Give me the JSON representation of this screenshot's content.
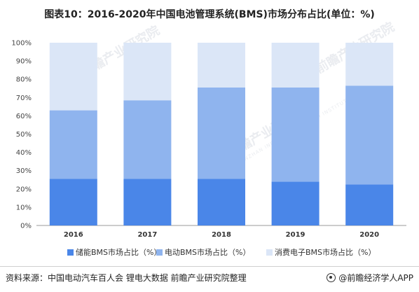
{
  "title": "图表10：2016-2020年中国电池管理系统(BMS)市场分布占比(单位：%)",
  "watermark": {
    "text": "前瞻产业研究院",
    "sub": "QIANZHAN INDUSTRY RESEARCH INSTITUTE"
  },
  "source": "资料来源：中国电动汽车百人会 锂电大数据 前瞻产业研究院整理",
  "brand": "@前瞻经济学人APP",
  "chart_data": {
    "type": "bar",
    "stacked": true,
    "categories": [
      "2016",
      "2017",
      "2018",
      "2019",
      "2020"
    ],
    "yticks": [
      "0%",
      "10%",
      "20%",
      "30%",
      "40%",
      "50%",
      "60%",
      "70%",
      "80%",
      "90%",
      "100%"
    ],
    "ylim": [
      0,
      100
    ],
    "grid": false,
    "legend_position": "bottom",
    "series": [
      {
        "name": "储能BMS市场占比（%）",
        "color": "#4a86e8",
        "values": [
          25.5,
          25.5,
          25.5,
          24,
          22.5
        ]
      },
      {
        "name": "电动BMS市场占比（%）",
        "color": "#8fb4ee",
        "values": [
          37.5,
          43,
          50,
          51.5,
          54
        ]
      },
      {
        "name": "消费电子BMS市场占比（%）",
        "color": "#dbe6f7",
        "values": [
          37,
          31.5,
          24.5,
          24.5,
          23.5
        ]
      }
    ]
  }
}
